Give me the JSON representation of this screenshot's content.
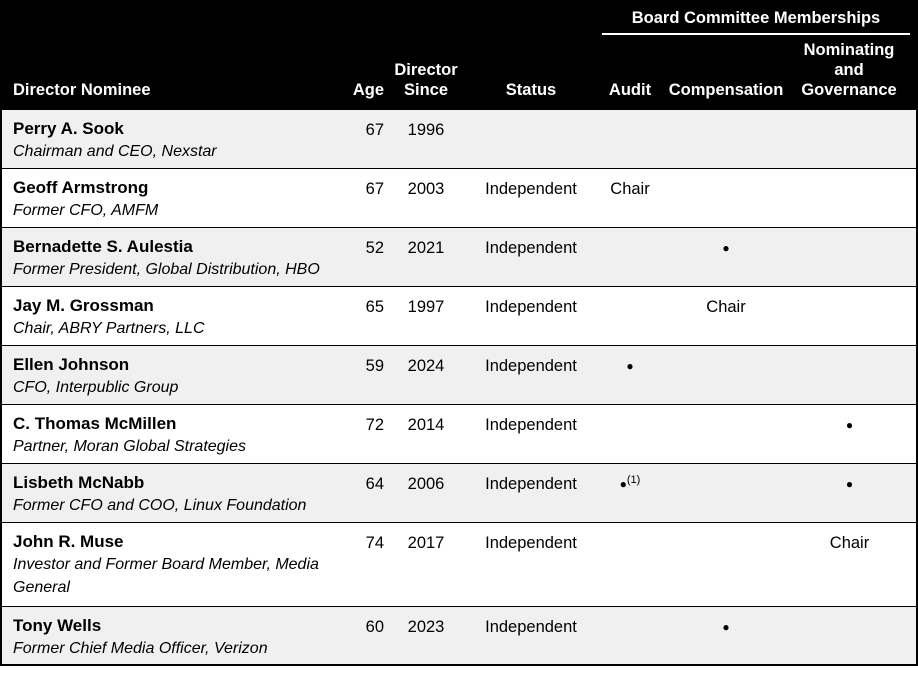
{
  "table": {
    "group_header": "Board Committee Memberships",
    "columns": [
      "Director Nominee",
      "Age",
      "Director\nSince",
      "Status",
      "Audit",
      "Compensation",
      "Nominating\nand\nGovernance"
    ],
    "rows": [
      {
        "name": "Perry A. Sook",
        "title": "Chairman and CEO, Nexstar",
        "age": "67",
        "since": "1996",
        "status": "",
        "audit": null,
        "compensation": null,
        "governance": null
      },
      {
        "name": "Geoff Armstrong",
        "title": "Former CFO, AMFM",
        "age": "67",
        "since": "2003",
        "status": "Independent",
        "audit": {
          "label": "Chair"
        },
        "compensation": null,
        "governance": null
      },
      {
        "name": "Bernadette S. Aulestia",
        "title": "Former President, Global Distribution, HBO",
        "age": "52",
        "since": "2021",
        "status": "Independent",
        "audit": null,
        "compensation": {
          "dot": true
        },
        "governance": null
      },
      {
        "name": "Jay M. Grossman",
        "title": "Chair, ABRY Partners, LLC",
        "age": "65",
        "since": "1997",
        "status": "Independent",
        "audit": null,
        "compensation": {
          "label": "Chair"
        },
        "governance": null
      },
      {
        "name": "Ellen Johnson",
        "title": "CFO, Interpublic Group",
        "age": "59",
        "since": "2024",
        "status": "Independent",
        "audit": {
          "dot": true
        },
        "compensation": null,
        "governance": null
      },
      {
        "name": "C. Thomas McMillen",
        "title": "Partner, Moran Global Strategies",
        "age": "72",
        "since": "2014",
        "status": "Independent",
        "audit": null,
        "compensation": null,
        "governance": {
          "dot": true
        }
      },
      {
        "name": "Lisbeth McNabb",
        "title": "Former CFO and COO, Linux Foundation",
        "age": "64",
        "since": "2006",
        "status": "Independent",
        "audit": {
          "dot": true,
          "note": "(1)"
        },
        "compensation": null,
        "governance": {
          "dot": true
        }
      },
      {
        "name": "John R. Muse",
        "title": "Investor and Former Board Member, Media General",
        "age": "74",
        "since": "2017",
        "status": "Independent",
        "audit": null,
        "compensation": null,
        "governance": {
          "label": "Chair"
        }
      },
      {
        "name": "Tony Wells",
        "title": "Former Chief Media Officer, Verizon",
        "age": "60",
        "since": "2023",
        "status": "Independent",
        "audit": null,
        "compensation": {
          "dot": true
        },
        "governance": null
      }
    ]
  },
  "symbols": {
    "member_dot": "●"
  },
  "colors": {
    "header_bg": "#000000",
    "header_text": "#ffffff",
    "row_shaded": "#f0f0f0",
    "row_plain": "#ffffff",
    "border": "#000000"
  }
}
